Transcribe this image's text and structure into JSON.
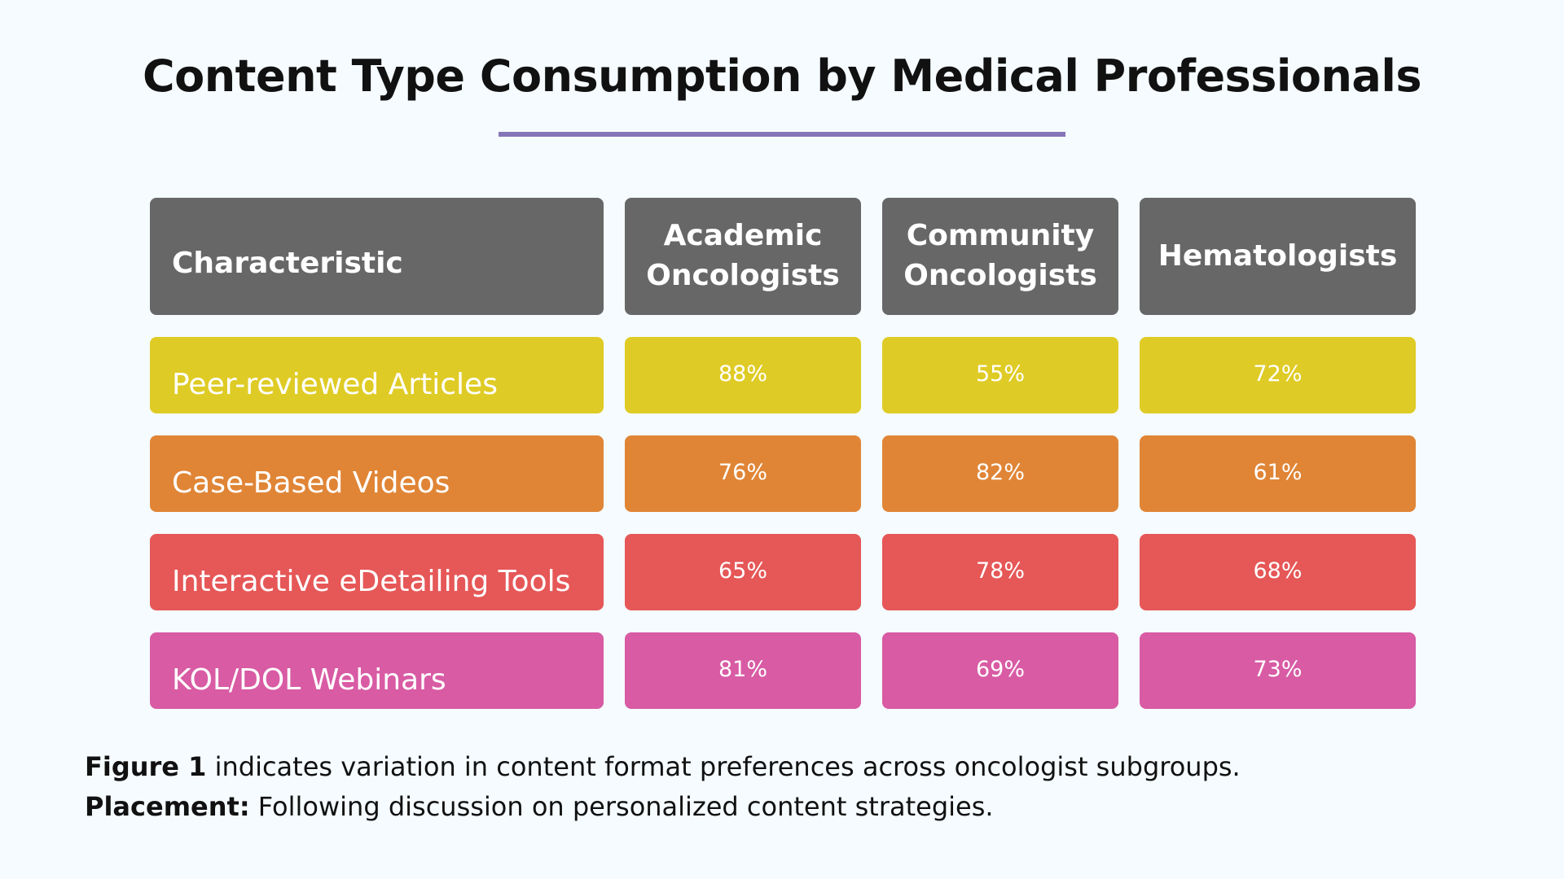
{
  "title": "Content Type Consumption by Medical Professionals",
  "colors": {
    "header": "#676767",
    "rule": "#8674b8",
    "background": "#f5fbfe",
    "rows": [
      "#dfcb25",
      "#e08536",
      "#e65757",
      "#d85ba4"
    ]
  },
  "chart_data": {
    "type": "table",
    "title": "Content Type Consumption by Medical Professionals",
    "columns": [
      "Characteristic",
      "Academic Oncologists",
      "Community Oncologists",
      "Hematologists"
    ],
    "rows": [
      {
        "label": "Peer-reviewed Articles",
        "values": [
          "88%",
          "55%",
          "72%"
        ]
      },
      {
        "label": "Case-Based Videos",
        "values": [
          "76%",
          "82%",
          "61%"
        ]
      },
      {
        "label": "Interactive eDetailing Tools",
        "values": [
          "65%",
          "78%",
          "68%"
        ]
      },
      {
        "label": "KOL/DOL Webinars",
        "values": [
          "81%",
          "69%",
          "73%"
        ]
      }
    ]
  },
  "caption": {
    "line1_bold": "Figure 1",
    "line1_text": " indicates variation in content format preferences across oncologist subgroups.",
    "line2_bold": "Placement:",
    "line2_text": " Following discussion on personalized content strategies."
  }
}
